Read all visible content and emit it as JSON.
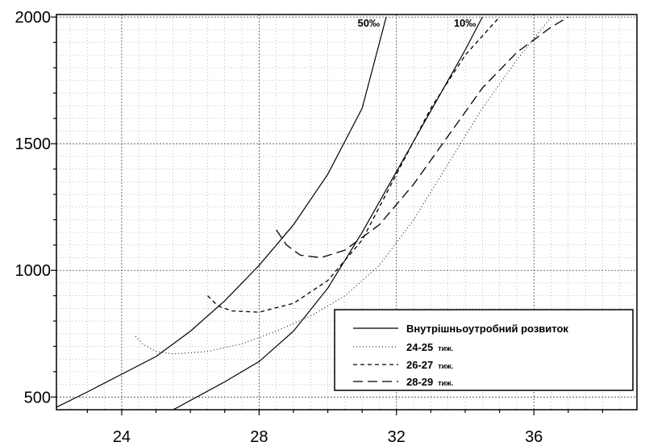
{
  "chart_data": {
    "type": "line",
    "xlim": [
      22.1,
      39
    ],
    "ylim": [
      450,
      2010
    ],
    "x_ticks": [
      "24",
      "28",
      "32",
      "36"
    ],
    "y_ticks": [
      "500",
      "1000",
      "1500",
      "2000"
    ],
    "grid": true,
    "legend_position": "bottom-right",
    "legend_entries": [
      {
        "label": "Внутрішньоутробний розвиток",
        "unit": "",
        "dash": "solid"
      },
      {
        "label": "24-25",
        "unit": "тиж.",
        "dash": "dotted"
      },
      {
        "label": "26-27",
        "unit": "тиж.",
        "dash": "short-dash"
      },
      {
        "label": "28-29",
        "unit": "тиж.",
        "dash": "long-dash"
      }
    ],
    "series": [
      {
        "label": "50‰",
        "legend_index": 0,
        "points": [
          [
            22.1,
            460
          ],
          [
            23,
            520
          ],
          [
            24,
            590
          ],
          [
            25,
            660
          ],
          [
            26,
            760
          ],
          [
            27,
            880
          ],
          [
            28,
            1020
          ],
          [
            29,
            1180
          ],
          [
            30,
            1380
          ],
          [
            31,
            1640
          ],
          [
            31.7,
            2000
          ]
        ]
      },
      {
        "label": "10‰",
        "legend_index": 0,
        "points": [
          [
            25.5,
            450
          ],
          [
            27,
            560
          ],
          [
            28,
            640
          ],
          [
            29,
            760
          ],
          [
            30,
            930
          ],
          [
            31,
            1150
          ],
          [
            32,
            1390
          ],
          [
            33,
            1630
          ],
          [
            34,
            1870
          ],
          [
            34.5,
            2000
          ]
        ]
      },
      {
        "label": "",
        "legend_index": 1,
        "points": [
          [
            24.4,
            740
          ],
          [
            24.6,
            710
          ],
          [
            25,
            680
          ],
          [
            25.5,
            670
          ],
          [
            26.5,
            680
          ],
          [
            27.5,
            710
          ],
          [
            28.5,
            760
          ],
          [
            29.5,
            820
          ],
          [
            30.5,
            900
          ],
          [
            31.5,
            1020
          ],
          [
            32.5,
            1200
          ],
          [
            33.5,
            1420
          ],
          [
            34.5,
            1640
          ],
          [
            35.5,
            1830
          ],
          [
            36.5,
            2000
          ]
        ]
      },
      {
        "label": "",
        "legend_index": 2,
        "points": [
          [
            26.5,
            900
          ],
          [
            26.8,
            860
          ],
          [
            27.2,
            840
          ],
          [
            28,
            835
          ],
          [
            29,
            870
          ],
          [
            30,
            960
          ],
          [
            31,
            1120
          ],
          [
            32,
            1380
          ],
          [
            33,
            1640
          ],
          [
            34,
            1850
          ],
          [
            35,
            2000
          ]
        ]
      },
      {
        "label": "",
        "legend_index": 3,
        "points": [
          [
            28.5,
            1160
          ],
          [
            28.8,
            1100
          ],
          [
            29.2,
            1060
          ],
          [
            29.8,
            1050
          ],
          [
            30.5,
            1080
          ],
          [
            31.5,
            1180
          ],
          [
            32.5,
            1340
          ],
          [
            33.5,
            1530
          ],
          [
            34.5,
            1720
          ],
          [
            35.5,
            1860
          ],
          [
            36.5,
            1960
          ],
          [
            37,
            2000
          ]
        ]
      }
    ]
  }
}
